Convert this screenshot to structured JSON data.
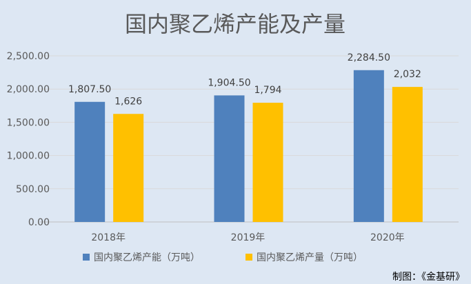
{
  "chart_data": {
    "type": "bar",
    "title": "国内聚乙烯产能及产量",
    "categories": [
      "2018年",
      "2019年",
      "2020年"
    ],
    "series": [
      {
        "name": "国内聚乙烯产能（万吨）",
        "values": [
          1807.5,
          1904.5,
          2284.5
        ],
        "labels": [
          "1,807.50",
          "1,904.50",
          "2,284.50"
        ],
        "color": "#4f81bd"
      },
      {
        "name": "国内聚乙烯产量（万吨）",
        "values": [
          1626,
          1794,
          2032
        ],
        "labels": [
          "1,626",
          "1,794",
          "2,032"
        ],
        "color": "#ffc000"
      }
    ],
    "ylim": [
      0,
      2500
    ],
    "yticks": [
      0,
      500,
      1000,
      1500,
      2000,
      2500
    ],
    "ytick_labels": [
      "0.00",
      "500.00",
      "1,000.00",
      "1,500.00",
      "2,000.00",
      "2,500.00"
    ],
    "grid": true,
    "legend": "bottom",
    "xlabel": "",
    "ylabel": ""
  },
  "credit": "制图：《金基研》"
}
